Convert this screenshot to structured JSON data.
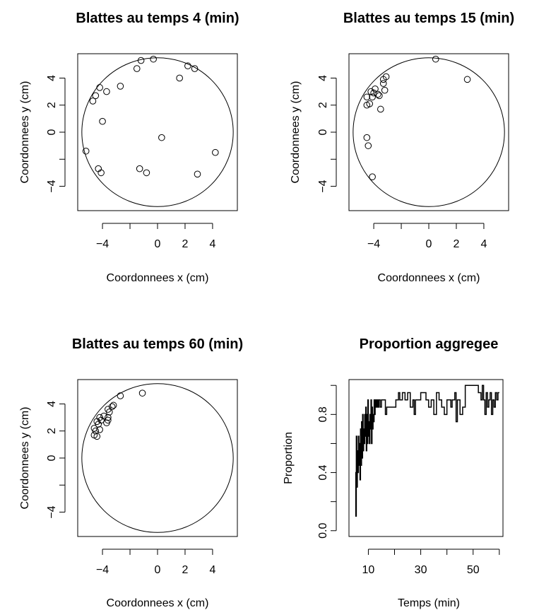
{
  "chart_data": [
    {
      "type": "scatter",
      "title": "Blattes au temps 4 (min)",
      "xlabel": "Coordonnees x (cm)",
      "ylabel": "Coordonnees y (cm)",
      "xlim": [
        -5.8,
        5.8
      ],
      "ylim": [
        -5.8,
        5.8
      ],
      "xticks": [
        -4,
        -2,
        0,
        2,
        4
      ],
      "xtick_labels": [
        "−4",
        "",
        "0",
        "2",
        "4"
      ],
      "yticks": [
        -4,
        -2,
        0,
        2,
        4
      ],
      "ytick_labels": [
        "−4",
        "",
        "0",
        "2",
        "4"
      ],
      "circle": {
        "cx": 0,
        "cy": 0,
        "r": 5.5
      },
      "grid": false,
      "series": [
        {
          "marker": "open-circle",
          "x": [
            -1.2,
            -0.3,
            2.2,
            2.7,
            1.6,
            -1.5,
            -2.7,
            -4.2,
            -4.5,
            -3.7,
            -4.7,
            -4.0,
            -5.2,
            0.3,
            4.2,
            -4.3,
            -4.1,
            -1.3,
            -0.8,
            2.9
          ],
          "y": [
            5.3,
            5.4,
            4.9,
            4.7,
            4.0,
            4.7,
            3.4,
            3.3,
            2.7,
            3.0,
            2.3,
            0.8,
            -1.4,
            -0.4,
            -1.5,
            -2.7,
            -3.0,
            -2.7,
            -3.0,
            -3.1
          ]
        }
      ]
    },
    {
      "type": "scatter",
      "title": "Blattes au temps 15 (min)",
      "xlabel": "Coordonnees x (cm)",
      "ylabel": "Coordonnees y (cm)",
      "xlim": [
        -5.8,
        5.8
      ],
      "ylim": [
        -5.8,
        5.8
      ],
      "xticks": [
        -4,
        -2,
        0,
        2,
        4
      ],
      "xtick_labels": [
        "−4",
        "",
        "0",
        "2",
        "4"
      ],
      "yticks": [
        -4,
        -2,
        0,
        2,
        4
      ],
      "ytick_labels": [
        "−4",
        "",
        "0",
        "2",
        "4"
      ],
      "circle": {
        "cx": 0,
        "cy": 0,
        "r": 5.5
      },
      "grid": false,
      "series": [
        {
          "marker": "open-circle",
          "x": [
            0.5,
            2.8,
            -3.1,
            -3.3,
            -3.3,
            -3.2,
            -3.6,
            -3.9,
            -4.0,
            -4.1,
            -4.2,
            -3.7,
            -4.5,
            -4.3,
            -3.5,
            -4.5,
            -4.5,
            -4.4
          ],
          "y": [
            5.4,
            3.9,
            4.1,
            3.9,
            3.6,
            3.1,
            2.7,
            3.2,
            2.9,
            2.6,
            3.0,
            2.8,
            2.6,
            2.1,
            1.7,
            2.0,
            -0.4,
            -1.0
          ]
        },
        {
          "marker": "open-circle",
          "x": [
            -4.1
          ],
          "y": [
            -3.3
          ]
        }
      ]
    },
    {
      "type": "scatter",
      "title": "Blattes au temps 60 (min)",
      "xlabel": "Coordonnees x (cm)",
      "ylabel": "Coordonnees y (cm)",
      "xlim": [
        -5.8,
        5.8
      ],
      "ylim": [
        -5.8,
        5.8
      ],
      "xticks": [
        -4,
        -2,
        0,
        2,
        4
      ],
      "xtick_labels": [
        "−4",
        "",
        "0",
        "2",
        "4"
      ],
      "yticks": [
        -4,
        -2,
        0,
        2,
        4
      ],
      "ytick_labels": [
        "−4",
        "",
        "0",
        "2",
        "4"
      ],
      "circle": {
        "cx": 0,
        "cy": 0,
        "r": 5.5
      },
      "grid": false,
      "series": [
        {
          "marker": "open-circle",
          "x": [
            -1.1,
            -2.7,
            -3.2,
            -3.3,
            -3.6,
            -3.5,
            -3.6,
            -3.9,
            -4.2,
            -4.4,
            -4.1,
            -4.3,
            -3.6,
            -3.7,
            -4.6,
            -4.5,
            -4.2,
            -4.6,
            -4.4
          ],
          "y": [
            4.8,
            4.6,
            3.9,
            3.8,
            3.6,
            3.4,
            3.0,
            3.1,
            3.0,
            2.7,
            2.8,
            2.5,
            2.8,
            2.6,
            2.2,
            2.0,
            2.1,
            1.7,
            1.6
          ]
        }
      ]
    },
    {
      "type": "line",
      "title": "Proportion aggregee",
      "xlabel": "Temps (min)",
      "ylabel": "Proportion",
      "xlim": [
        2.6,
        61.4
      ],
      "ylim": [
        -0.04,
        1.04
      ],
      "xticks": [
        10,
        20,
        30,
        40,
        50,
        60
      ],
      "xtick_labels": [
        "10",
        "",
        "30",
        "",
        "50",
        ""
      ],
      "yticks": [
        0.0,
        0.2,
        0.4,
        0.6,
        0.8,
        1.0
      ],
      "ytick_labels": [
        "0.0",
        "",
        "0.4",
        "",
        "0.8",
        ""
      ],
      "grid": false,
      "series": [
        {
          "x": [
            5.0,
            5.2,
            5.4,
            5.6,
            5.8,
            6.0,
            6.2,
            6.4,
            6.6,
            6.8,
            7.0,
            7.2,
            7.4,
            7.6,
            7.8,
            8.0,
            8.2,
            8.4,
            8.6,
            8.8,
            9.0,
            9.2,
            9.4,
            9.6,
            9.8,
            10.0,
            10.2,
            10.4,
            10.6,
            10.8,
            11.0,
            11.2,
            11.4,
            11.6,
            11.8,
            12.0,
            12.2,
            12.4,
            12.6,
            12.8,
            13.0,
            13.2,
            13.4,
            13.6,
            13.8,
            14.0,
            14.5,
            15.0,
            15.5,
            16.0,
            16.5,
            17.0,
            18.0,
            19.0,
            20.0,
            20.5,
            21.0,
            21.5,
            22.0,
            23.0,
            24.0,
            25.0,
            26.0,
            27.0,
            27.5,
            28.0,
            28.5,
            29.0,
            30.0,
            31.0,
            32.0,
            33.0,
            34.0,
            35.0,
            36.0,
            37.0,
            37.5,
            38.0,
            39.0,
            40.0,
            41.0,
            41.5,
            42.0,
            43.0,
            43.5,
            44.0,
            45.0,
            46.0,
            47.0,
            48.0,
            49.0,
            50.0,
            51.0,
            52.0,
            53.0,
            53.5,
            54.0,
            54.5,
            55.0,
            55.5,
            56.0,
            56.5,
            57.0,
            57.5,
            58.0,
            58.5,
            59.0,
            59.5,
            60.0
          ],
          "y": [
            0.4,
            0.1,
            0.65,
            0.3,
            0.55,
            0.4,
            0.65,
            0.45,
            0.6,
            0.35,
            0.7,
            0.45,
            0.75,
            0.5,
            0.8,
            0.55,
            0.7,
            0.6,
            0.8,
            0.65,
            0.85,
            0.55,
            0.8,
            0.6,
            0.9,
            0.65,
            0.75,
            0.6,
            0.8,
            0.7,
            0.9,
            0.6,
            0.85,
            0.7,
            0.8,
            0.75,
            0.9,
            0.8,
            0.85,
            0.9,
            0.85,
            0.9,
            0.85,
            0.9,
            0.85,
            0.9,
            0.85,
            0.9,
            0.9,
            0.9,
            0.8,
            0.85,
            0.85,
            0.85,
            0.85,
            0.9,
            0.9,
            0.95,
            0.9,
            0.95,
            0.9,
            0.95,
            0.85,
            0.9,
            0.8,
            0.9,
            0.9,
            0.9,
            0.95,
            0.95,
            0.9,
            0.85,
            0.9,
            0.8,
            0.95,
            0.9,
            0.9,
            0.85,
            0.8,
            0.9,
            0.9,
            0.85,
            0.9,
            0.95,
            0.75,
            0.9,
            0.8,
            0.85,
            1.0,
            1.0,
            1.0,
            1.0,
            1.0,
            0.95,
            0.9,
            1.0,
            0.9,
            0.8,
            0.95,
            0.85,
            0.9,
            0.95,
            0.8,
            0.9,
            0.85,
            0.95,
            0.9,
            0.95,
            0.95
          ]
        }
      ]
    }
  ]
}
